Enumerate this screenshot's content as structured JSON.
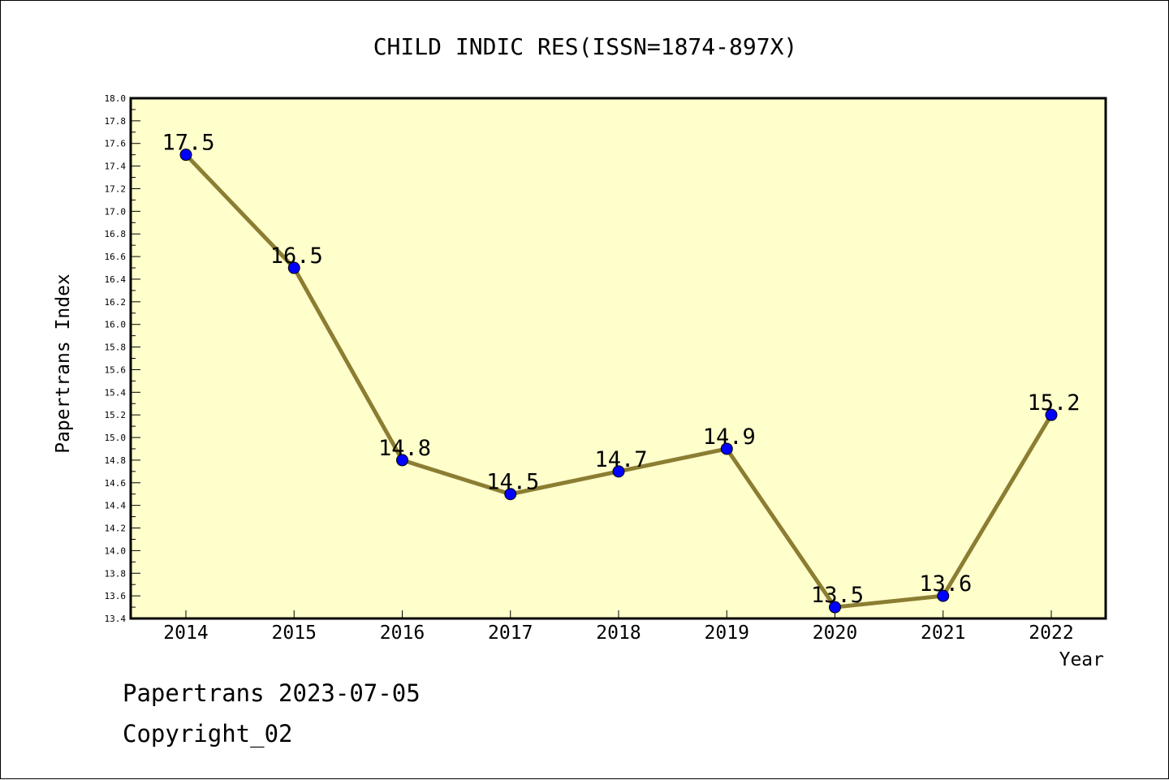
{
  "footer": {
    "date_text": "Papertrans 2023-07-05",
    "copyright_text": "Copyright_02"
  },
  "colors": {
    "plot_background": "#ffffcc",
    "line": "#8b7d32",
    "marker": "#0000ff"
  },
  "chart_data": {
    "type": "line",
    "title": "CHILD INDIC RES(ISSN=1874-897X)",
    "xlabel": "Year",
    "ylabel": "Papertrans Index",
    "categories": [
      "2014",
      "2015",
      "2016",
      "2017",
      "2018",
      "2019",
      "2020",
      "2021",
      "2022"
    ],
    "series": [
      {
        "values": [
          17.5,
          16.5,
          14.8,
          14.5,
          14.7,
          14.9,
          13.5,
          13.6,
          15.2
        ],
        "data_labels": [
          "17.5",
          "16.5",
          "14.8",
          "14.5",
          "14.7",
          "14.9",
          "13.5",
          "13.6",
          "15.2"
        ]
      }
    ],
    "ylim": [
      13.4,
      18.0
    ],
    "ytick_step": 0.2,
    "ytick_labels": [
      "13.4",
      "13.6",
      "13.8",
      "14.0",
      "14.2",
      "14.4",
      "14.6",
      "14.8",
      "15.0",
      "15.2",
      "15.4",
      "15.6",
      "15.8",
      "16.0",
      "16.2",
      "16.4",
      "16.6",
      "16.8",
      "17.0",
      "17.2",
      "17.4",
      "17.6",
      "17.8",
      "18.0"
    ],
    "grid": false,
    "legend": "none"
  }
}
